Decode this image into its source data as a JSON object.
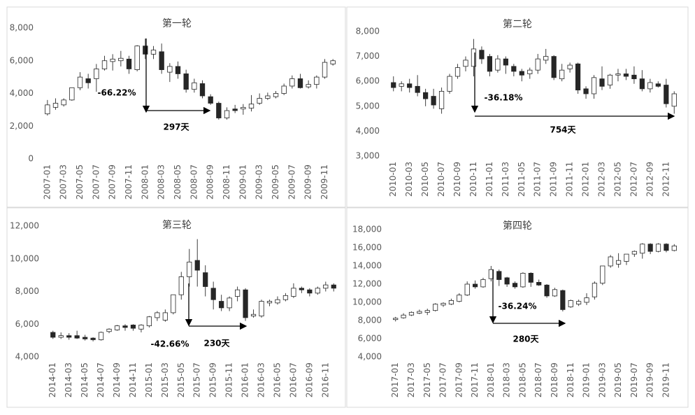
{
  "chart_data": [
    {
      "type": "candlestick",
      "title": "第一轮",
      "categories": [
        "2007-01",
        null,
        "2007-03",
        null,
        "2007-05",
        null,
        "2007-07",
        null,
        "2007-09",
        null,
        "2007-11",
        null,
        "2008-01",
        null,
        "2008-03",
        null,
        "2008-05",
        null,
        "2008-07",
        null,
        "2008-09",
        null,
        "2008-11",
        null,
        "2009-01",
        null,
        "2009-03",
        null,
        "2009-05",
        null,
        "2009-07",
        null,
        "2009-09",
        null,
        "2009-11",
        null
      ],
      "open": [
        2750,
        3150,
        3300,
        3600,
        4350,
        4900,
        4900,
        5500,
        5950,
        6000,
        6100,
        5450,
        6900,
        6400,
        6550,
        5300,
        5650,
        5200,
        4250,
        4600,
        3800,
        3400,
        2500,
        3050,
        3050,
        3100,
        3400,
        3700,
        3800,
        4000,
        4450,
        4900,
        4400,
        4550,
        5000,
        5800
      ],
      "high": [
        3600,
        3700,
        3700,
        4350,
        5300,
        5200,
        5800,
        6300,
        6400,
        6600,
        6300,
        6950,
        7350,
        6900,
        7050,
        5850,
        5950,
        5450,
        4900,
        4800,
        3950,
        3500,
        3150,
        3300,
        3350,
        3900,
        4000,
        4050,
        4150,
        4600,
        5100,
        5200,
        4800,
        5100,
        6100,
        6100
      ],
      "low": [
        2650,
        3000,
        3200,
        3550,
        4200,
        4300,
        4100,
        5400,
        5400,
        5650,
        5200,
        5350,
        6100,
        6100,
        5200,
        4700,
        4900,
        4050,
        4050,
        3700,
        3300,
        2400,
        2400,
        2800,
        2700,
        2900,
        3300,
        3600,
        3700,
        3900,
        4300,
        4300,
        4300,
        4300,
        4900,
        5700
      ],
      "close": [
        3300,
        3400,
        3600,
        4350,
        5000,
        4650,
        5500,
        6000,
        6100,
        6150,
        5500,
        6900,
        6400,
        6650,
        5450,
        5650,
        5200,
        4250,
        4650,
        3850,
        3400,
        2500,
        2950,
        2950,
        3150,
        3350,
        3700,
        3850,
        4000,
        4450,
        4900,
        4350,
        4550,
        5000,
        5900,
        6000
      ],
      "ylim": [
        0,
        8000
      ],
      "yticks": [
        0,
        {
          "value": 2000,
          "label": "2,000"
        },
        {
          "value": 4000,
          "label": "4,000"
        },
        {
          "value": 6000,
          "label": "6,000"
        },
        {
          "value": 8000,
          "label": "8,000"
        }
      ],
      "annotations": [
        "-66.22%",
        "297天"
      ]
    },
    {
      "type": "candlestick",
      "title": "第二轮",
      "categories": [
        "2010-01",
        null,
        "2010-03",
        null,
        "2010-05",
        null,
        "2010-07",
        null,
        "2010-09",
        null,
        "2010-11",
        null,
        "2011-01",
        null,
        "2011-03",
        null,
        "2011-05",
        null,
        "2011-07",
        null,
        "2011-09",
        null,
        "2011-11",
        null,
        "2012-01",
        null,
        "2012-03",
        null,
        "2012-05",
        null,
        "2012-07",
        null,
        "2012-09",
        null,
        "2012-11",
        null
      ],
      "open": [
        5950,
        5800,
        5900,
        5800,
        5550,
        5400,
        4900,
        5600,
        6200,
        6600,
        6600,
        7250,
        7000,
        6450,
        6900,
        6600,
        6400,
        6300,
        6450,
        6850,
        7000,
        6100,
        6500,
        6700,
        5700,
        5500,
        6100,
        5850,
        6250,
        6300,
        6250,
        6100,
        5700,
        5900,
        5850,
        5000
      ],
      "high": [
        6200,
        6000,
        6100,
        6250,
        5700,
        5700,
        5750,
        6300,
        6700,
        7000,
        7700,
        7400,
        7100,
        7050,
        7000,
        6700,
        6500,
        6550,
        7100,
        7300,
        7050,
        6700,
        6750,
        6750,
        5800,
        6250,
        6600,
        6300,
        6500,
        6500,
        6600,
        6450,
        6100,
        6000,
        6100,
        5600
      ],
      "low": [
        5600,
        5600,
        5550,
        5400,
        5000,
        4900,
        4700,
        5500,
        6100,
        6400,
        6200,
        6700,
        6200,
        6350,
        6300,
        6200,
        6000,
        6100,
        6300,
        6700,
        6050,
        6000,
        6350,
        5500,
        5300,
        5300,
        5650,
        5700,
        6000,
        6050,
        5900,
        5600,
        5550,
        5750,
        4950,
        4700
      ],
      "close": [
        5750,
        5900,
        5750,
        5550,
        5300,
        5050,
        5600,
        6200,
        6550,
        6850,
        7300,
        6900,
        6400,
        6900,
        6650,
        6400,
        6250,
        6450,
        6900,
        7000,
        6150,
        6450,
        6650,
        5650,
        5500,
        6150,
        5800,
        6250,
        6300,
        6200,
        6100,
        5700,
        5950,
        5800,
        5100,
        5500
      ],
      "ylim": [
        3000,
        8000
      ],
      "yticks": [
        {
          "value": 3000,
          "label": "3,000"
        },
        {
          "value": 4000,
          "label": "4,000"
        },
        {
          "value": 5000,
          "label": "5,000"
        },
        {
          "value": 6000,
          "label": "6,000"
        },
        {
          "value": 7000,
          "label": "7,000"
        },
        {
          "value": 8000,
          "label": "8,000"
        }
      ],
      "annotations": [
        "-36.18%",
        "754天"
      ]
    },
    {
      "type": "candlestick",
      "title": "第三轮",
      "categories": [
        "2014-01",
        null,
        "2014-03",
        null,
        "2014-05",
        null,
        "2014-07",
        null,
        "2014-09",
        null,
        "2014-11",
        null,
        "2015-01",
        null,
        "2015-03",
        null,
        "2015-05",
        null,
        "2015-07",
        null,
        "2015-09",
        null,
        "2015-11",
        null,
        "2016-01",
        null,
        "2016-03",
        null,
        "2016-05",
        null,
        "2016-07",
        null,
        "2016-09",
        null,
        "2016-11",
        null
      ],
      "open": [
        5500,
        5200,
        5300,
        5300,
        5200,
        5150,
        5050,
        5550,
        5650,
        5900,
        5950,
        5700,
        5900,
        6400,
        6250,
        6700,
        7800,
        8900,
        9900,
        9150,
        8200,
        7400,
        7000,
        7700,
        8100,
        6500,
        6500,
        7300,
        7300,
        7500,
        7700,
        8200,
        8100,
        7900,
        8200,
        8400
      ],
      "high": [
        5600,
        5500,
        5450,
        5600,
        5350,
        5200,
        5550,
        5750,
        5950,
        6000,
        6000,
        6000,
        6500,
        6800,
        6900,
        7800,
        9200,
        10600,
        11200,
        9600,
        8600,
        7800,
        7700,
        8300,
        8200,
        6900,
        7500,
        7500,
        7700,
        7900,
        8500,
        8300,
        8200,
        8300,
        8600,
        8500
      ],
      "low": [
        5100,
        5100,
        5050,
        5100,
        5000,
        4950,
        5000,
        5450,
        5600,
        5600,
        5600,
        5500,
        5800,
        6200,
        6150,
        6600,
        7500,
        8300,
        8300,
        7700,
        6900,
        6800,
        6800,
        7400,
        6200,
        6400,
        6400,
        7100,
        7200,
        7400,
        7600,
        7900,
        7700,
        7800,
        8000,
        8000
      ],
      "close": [
        5200,
        5300,
        5200,
        5150,
        5100,
        5050,
        5500,
        5700,
        5900,
        5800,
        5750,
        5950,
        6450,
        6700,
        6700,
        7800,
        8900,
        9800,
        9300,
        8300,
        7500,
        7000,
        7600,
        8100,
        6400,
        6600,
        7400,
        7400,
        7500,
        7750,
        8200,
        8100,
        7900,
        8200,
        8400,
        8200
      ],
      "ylim": [
        4000,
        12000
      ],
      "yticks": [
        {
          "value": 4000,
          "label": "4,000"
        },
        {
          "value": 6000,
          "label": "6,000"
        },
        {
          "value": 8000,
          "label": "8,000"
        },
        {
          "value": 10000,
          "label": "10,000"
        },
        {
          "value": 12000,
          "label": "12,000"
        }
      ],
      "annotations": [
        "-42.66%",
        "230天"
      ]
    },
    {
      "type": "candlestick",
      "title": "第四轮",
      "categories": [
        "2017-01",
        null,
        "2017-03",
        null,
        "2017-05",
        null,
        "2017-07",
        null,
        "2017-09",
        null,
        "2017-11",
        null,
        "2018-01",
        null,
        "2018-03",
        null,
        "2018-05",
        null,
        "2018-07",
        null,
        "2018-09",
        null,
        "2018-11",
        null,
        "2019-01",
        null,
        "2019-03",
        null,
        "2019-05",
        null,
        "2019-07",
        null,
        "2019-09",
        null,
        "2019-11",
        null
      ],
      "open": [
        8100,
        8300,
        8600,
        8800,
        8900,
        9100,
        9700,
        9800,
        10100,
        10800,
        12000,
        11700,
        12600,
        13400,
        12700,
        12100,
        11700,
        13200,
        12200,
        11900,
        10700,
        11300,
        9500,
        9800,
        10000,
        10600,
        12100,
        14000,
        14200,
        14500,
        15300,
        15400,
        16400,
        15600,
        16400,
        15700
      ],
      "high": [
        8400,
        8800,
        9000,
        9200,
        9300,
        9900,
        10000,
        10400,
        11000,
        12300,
        12400,
        12700,
        14000,
        13600,
        12800,
        12300,
        13300,
        13300,
        12500,
        12000,
        11600,
        11400,
        10300,
        10300,
        11000,
        12300,
        14000,
        15200,
        15400,
        15300,
        15700,
        16500,
        16500,
        16500,
        16500,
        16400
      ],
      "low": [
        7900,
        8200,
        8500,
        8700,
        8600,
        9000,
        9500,
        9700,
        10000,
        10700,
        11500,
        11600,
        12300,
        11800,
        11700,
        11500,
        11600,
        11700,
        11800,
        10500,
        10600,
        9000,
        9400,
        9600,
        9700,
        10300,
        11900,
        13800,
        13800,
        14100,
        15000,
        14800,
        15300,
        15500,
        15500,
        15600
      ],
      "close": [
        8250,
        8600,
        8900,
        9000,
        9100,
        9800,
        9900,
        10200,
        10800,
        12000,
        11700,
        12500,
        13600,
        12500,
        12000,
        11700,
        13200,
        12200,
        11900,
        10700,
        11400,
        9200,
        10200,
        10100,
        10500,
        12100,
        14000,
        15000,
        14600,
        15300,
        15600,
        16400,
        15600,
        16400,
        15700,
        16200
      ],
      "ylim": [
        4000,
        18000
      ],
      "yticks": [
        {
          "value": 4000,
          "label": "4,000"
        },
        {
          "value": 6000,
          "label": "6,000"
        },
        {
          "value": 8000,
          "label": "8,000"
        },
        {
          "value": 10000,
          "label": "10,000"
        },
        {
          "value": 12000,
          "label": "12,000"
        },
        {
          "value": 14000,
          "label": "14,000"
        },
        {
          "value": 16000,
          "label": "16,000"
        },
        {
          "value": 18000,
          "label": "18,000"
        }
      ],
      "annotations": [
        "-36.24%",
        "280天"
      ]
    }
  ]
}
